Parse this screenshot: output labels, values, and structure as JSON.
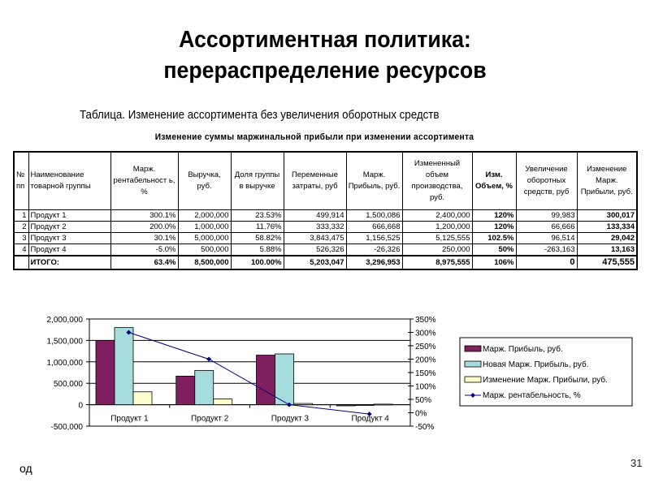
{
  "slide": {
    "title_line1": "Ассортиментная политика:",
    "title_line2": "перераспределение ресурсов",
    "caption": "Таблица. Изменение ассортимента без увеличения оборотных средств",
    "table_title": "Изменение суммы маржинальной прибыли при изменении ассортимента",
    "footer_left": "од",
    "page_number": "31"
  },
  "table": {
    "headers": [
      "№ пп",
      "Наименование товарной группы",
      "Марж. рентабельност ь, %",
      "Выручка, руб.",
      "Доля группы в выручке",
      "Переменные затраты, руб",
      "Марж. Прибыль, руб.",
      "Измененный объем производства, руб.",
      "Изм. Объем, %",
      "Увеличение оборотных средств, руб",
      "Изменение Марж. Прибыли, руб."
    ],
    "rows": [
      [
        "1",
        "Продукт 1",
        "300.1%",
        "2,000,000",
        "23.53%",
        "499,914",
        "1,500,086",
        "2,400,000",
        "120%",
        "99,983",
        "300,017"
      ],
      [
        "2",
        "Продукт 2",
        "200.0%",
        "1,000,000",
        "11.76%",
        "333,332",
        "666,668",
        "1,200,000",
        "120%",
        "66,666",
        "133,334"
      ],
      [
        "3",
        "Продукт 3",
        "30.1%",
        "5,000,000",
        "58.82%",
        "3,843,475",
        "1,156,525",
        "5,125,555",
        "102.5%",
        "96,514",
        "29,042"
      ],
      [
        "4",
        "Продукт 4",
        "-5.0%",
        "500,000",
        "5.88%",
        "526,326",
        "-26,326",
        "250,000",
        "50%",
        "-263,163",
        "13,163"
      ]
    ],
    "total": [
      "",
      "ИТОГО:",
      "63.4%",
      "8,500,000",
      "100.00%",
      "5,203,047",
      "3,296,953",
      "8,975,555",
      "106%",
      "0",
      "475,555"
    ]
  },
  "chart_data": {
    "type": "bar",
    "title": "",
    "categories": [
      "Продукт 1",
      "Продукт 2",
      "Продукт 3",
      "Продукт 4"
    ],
    "series": [
      {
        "name": "Марж. Прибыль, руб.",
        "type": "bar",
        "axis": "left",
        "color": "#7f1f5f",
        "values": [
          1500086,
          666668,
          1156525,
          -26326
        ]
      },
      {
        "name": "Новая Марж. Прибыль, руб.",
        "type": "bar",
        "axis": "left",
        "color": "#a6dcdc",
        "values": [
          1800103,
          800002,
          1185567,
          -13163
        ]
      },
      {
        "name": "Изменение Марж. Прибыли, руб.",
        "type": "bar",
        "axis": "left",
        "color": "#ffffcc",
        "values": [
          300017,
          133334,
          29042,
          13163
        ]
      },
      {
        "name": "Марж. рентабельность, %",
        "type": "line",
        "axis": "right",
        "color": "#000080",
        "values": [
          300.1,
          200.0,
          30.1,
          -5.0
        ]
      }
    ],
    "y_left": {
      "ticks": [
        "2,000,000",
        "1,500,000",
        "1,000,000",
        "500,000",
        "0",
        "-500,000"
      ],
      "range": [
        -500000,
        2000000
      ]
    },
    "y_right": {
      "ticks": [
        "350%",
        "300%",
        "250%",
        "200%",
        "150%",
        "100%",
        "50%",
        "0%",
        "-50%"
      ],
      "range": [
        -50,
        350
      ]
    },
    "xlabel": "",
    "ylabel": "",
    "grid": true,
    "legend_position": "right"
  }
}
